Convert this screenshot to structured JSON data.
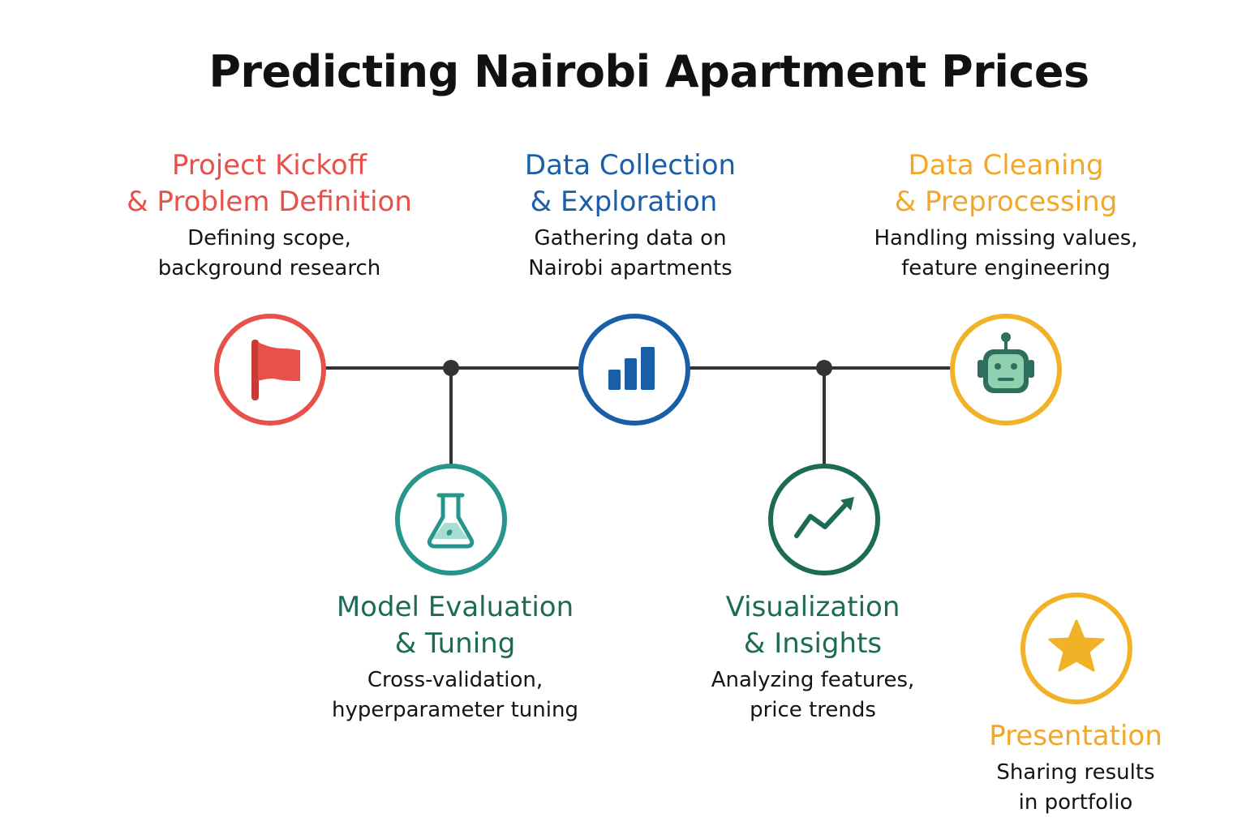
{
  "title": "Predicting Nairobi Apartment Prices",
  "colors": {
    "red": "#e8504a",
    "blue": "#1a5ea8",
    "amber": "#f2a72a",
    "teal": "#26958a",
    "green": "#1b6b57",
    "line": "#333333"
  },
  "steps": [
    {
      "title_line1": "Project Kickoff",
      "title_line2": "& Problem Definition",
      "desc_line1": "Defining scope,",
      "desc_line2": "background research",
      "icon": "flag-icon"
    },
    {
      "title_line1": "Data Collection",
      "title_line2": "& Exploration",
      "desc_line1": "Gathering data on",
      "desc_line2": "Nairobi apartments",
      "icon": "bar-chart-icon"
    },
    {
      "title_line1": "Data Cleaning",
      "title_line2": "& Preprocessing",
      "desc_line1": "Handling missing values,",
      "desc_line2": "feature engineering",
      "icon": "robot-icon"
    },
    {
      "title_line1": "Model Evaluation",
      "title_line2": "& Tuning",
      "desc_line1": "Cross-validation,",
      "desc_line2": "hyperparameter tuning",
      "icon": "flask-icon"
    },
    {
      "title_line1": "Visualization",
      "title_line2": "& Insights",
      "desc_line1": "Analyzing features,",
      "desc_line2": "price trends",
      "icon": "trend-up-icon"
    },
    {
      "title_line1": "Presentation",
      "desc_line1": "Sharing results",
      "desc_line2": "in portfolio",
      "icon": "star-icon"
    }
  ]
}
